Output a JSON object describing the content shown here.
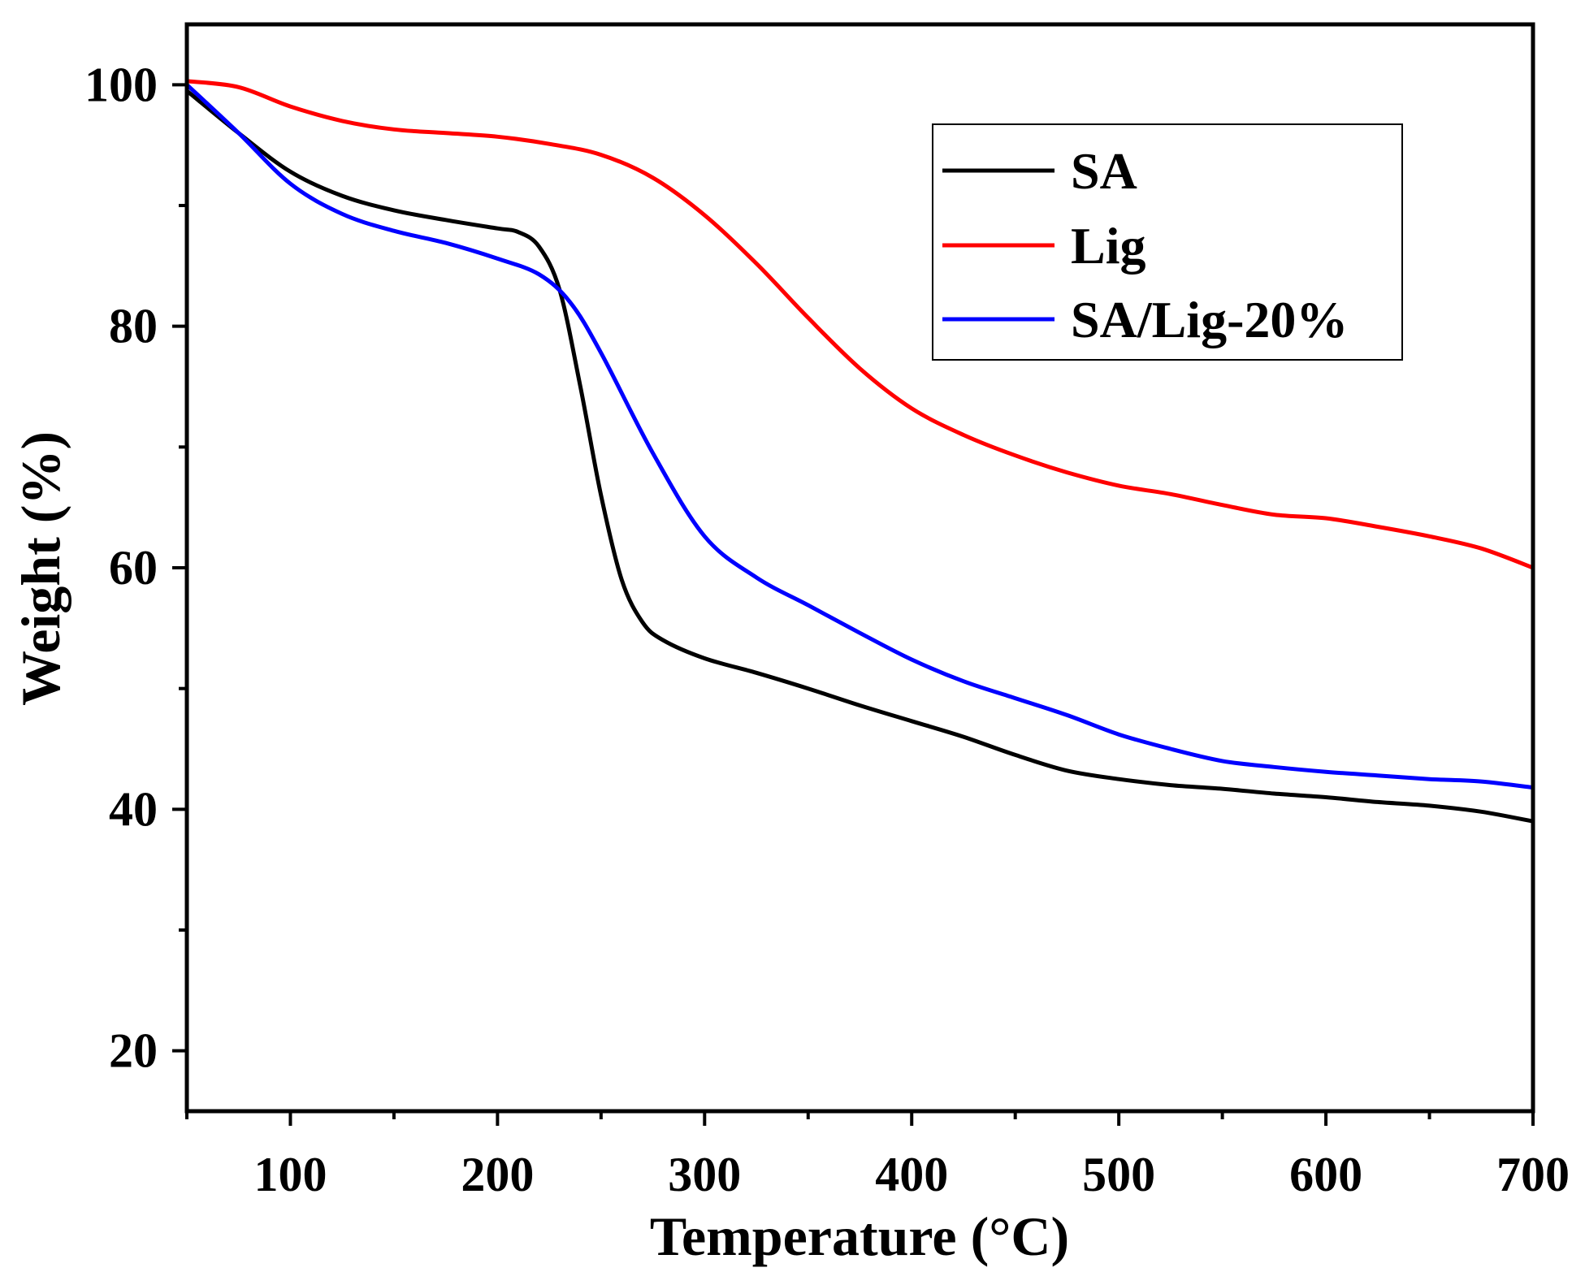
{
  "chart_data": {
    "type": "line",
    "title": "",
    "xlabel": "Temperature (°C)",
    "ylabel": "Weight (%)",
    "xlim": [
      50,
      700
    ],
    "ylim": [
      15,
      105
    ],
    "xticks": [
      100,
      200,
      300,
      400,
      500,
      600,
      700
    ],
    "yticks": [
      20,
      40,
      60,
      80,
      100
    ],
    "xtick_labels": [
      "100",
      "200",
      "300",
      "400",
      "500",
      "600",
      "700"
    ],
    "ytick_labels": [
      "20",
      "40",
      "60",
      "80",
      "100"
    ],
    "grid": false,
    "legend_position": "top-right",
    "series": [
      {
        "name": "SA",
        "color": "#000000",
        "x": [
          50,
          75,
          100,
          125,
          150,
          175,
          200,
          210,
          220,
          230,
          240,
          250,
          260,
          270,
          280,
          300,
          325,
          350,
          375,
          400,
          425,
          450,
          475,
          500,
          525,
          550,
          575,
          600,
          625,
          650,
          675,
          700
        ],
        "y": [
          99.5,
          96.0,
          92.8,
          90.8,
          89.6,
          88.8,
          88.1,
          87.8,
          86.6,
          83.0,
          75.0,
          66.0,
          59.0,
          55.5,
          54.0,
          52.5,
          51.3,
          50.0,
          48.6,
          47.3,
          46.0,
          44.5,
          43.2,
          42.5,
          42.0,
          41.7,
          41.3,
          41.0,
          40.6,
          40.3,
          39.8,
          39.0
        ]
      },
      {
        "name": "Lig",
        "color": "#ff0000",
        "x": [
          50,
          75,
          100,
          125,
          150,
          175,
          200,
          225,
          250,
          275,
          300,
          325,
          350,
          375,
          400,
          425,
          450,
          475,
          500,
          525,
          550,
          575,
          600,
          625,
          650,
          675,
          700
        ],
        "y": [
          100.3,
          99.8,
          98.2,
          97.0,
          96.3,
          96.0,
          95.7,
          95.1,
          94.2,
          92.3,
          89.2,
          85.2,
          80.7,
          76.5,
          73.2,
          71.0,
          69.3,
          67.9,
          66.8,
          66.1,
          65.2,
          64.4,
          64.1,
          63.4,
          62.6,
          61.6,
          60.0
        ]
      },
      {
        "name": "SA/Lig-20%",
        "color": "#0000ff",
        "x": [
          50,
          75,
          100,
          125,
          150,
          175,
          200,
          220,
          235,
          250,
          275,
          300,
          325,
          350,
          375,
          400,
          425,
          450,
          475,
          500,
          525,
          550,
          575,
          600,
          625,
          650,
          675,
          700
        ],
        "y": [
          100.0,
          96.0,
          91.8,
          89.3,
          87.9,
          86.9,
          85.6,
          84.3,
          82.0,
          77.8,
          69.5,
          62.6,
          59.2,
          56.9,
          54.6,
          52.4,
          50.6,
          49.2,
          47.8,
          46.2,
          45.0,
          44.0,
          43.5,
          43.1,
          42.8,
          42.5,
          42.3,
          41.8
        ]
      }
    ]
  }
}
